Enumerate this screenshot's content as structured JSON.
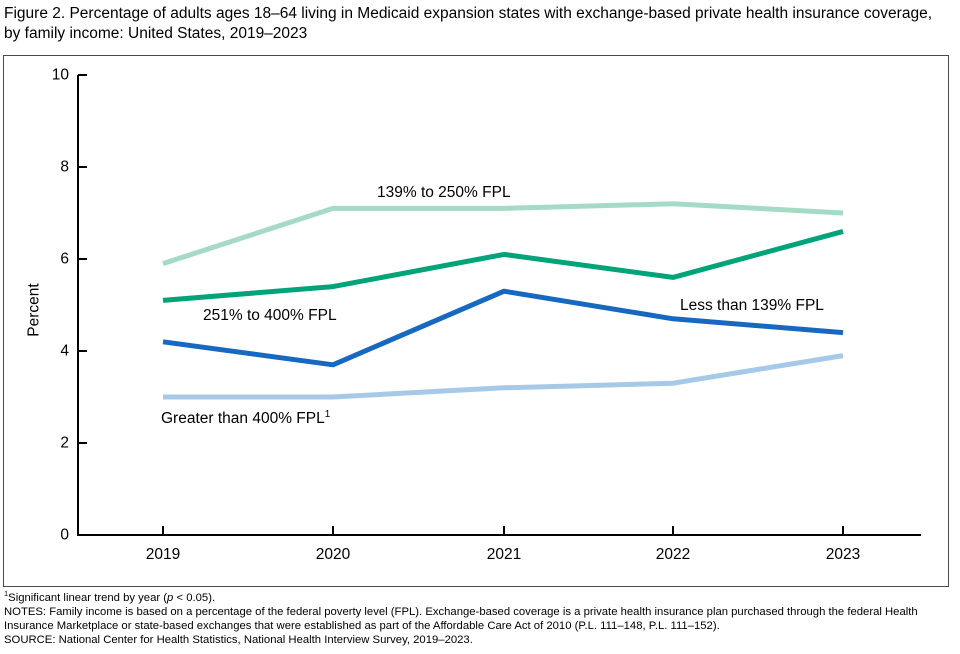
{
  "figure": {
    "title": "Figure 2. Percentage of adults ages 18–64 living in Medicaid expansion states with exchange-based private health insurance coverage, by family income: United States, 2019–2023"
  },
  "chart_data": {
    "type": "line",
    "title": "",
    "xlabel": "",
    "ylabel": "Percent",
    "ylim": [
      0,
      10
    ],
    "y_ticks": [
      0,
      2,
      4,
      6,
      8,
      10
    ],
    "categories": [
      "2019",
      "2020",
      "2021",
      "2022",
      "2023"
    ],
    "grid": false,
    "legend_position": "inline-labels",
    "axis_color": "#000000",
    "series": [
      {
        "name": "139% to 250% FPL",
        "label": "139% to 250% FPL",
        "label_sup": "",
        "color": "#a5dac6",
        "values": [
          5.9,
          7.1,
          7.1,
          7.2,
          7.0
        ]
      },
      {
        "name": "251% to 400% FPL",
        "label": "251% to 400% FPL",
        "label_sup": "",
        "color": "#00a478",
        "values": [
          5.1,
          5.4,
          6.1,
          5.6,
          6.6
        ]
      },
      {
        "name": "Less than 139% FPL",
        "label": "Less than 139% FPL",
        "label_sup": "",
        "color": "#1668c0",
        "values": [
          4.2,
          3.7,
          5.3,
          4.7,
          4.4
        ]
      },
      {
        "name": "Greater than 400% FPL",
        "label": "Greater than 400% FPL",
        "label_sup": "1",
        "color": "#a7c9e8",
        "values": [
          3.0,
          3.0,
          3.2,
          3.3,
          3.9
        ]
      }
    ]
  },
  "footnotes": {
    "trend": {
      "sup": "1",
      "before_p": "Significant linear trend by year (",
      "p": "p",
      "after_p": " < 0.05)."
    },
    "notes": "NOTES: Family income is based on a percentage of the federal poverty level (FPL). Exchange-based coverage is a private health insurance plan purchased through the federal Health Insurance Marketplace or state-based exchanges that were established as part of the Affordable Care Act of 2010 (P.L. 111–148, P.L. 111–152).",
    "source": "SOURCE: National Center for Health Statistics, National Health Interview Survey, 2019–2023."
  }
}
